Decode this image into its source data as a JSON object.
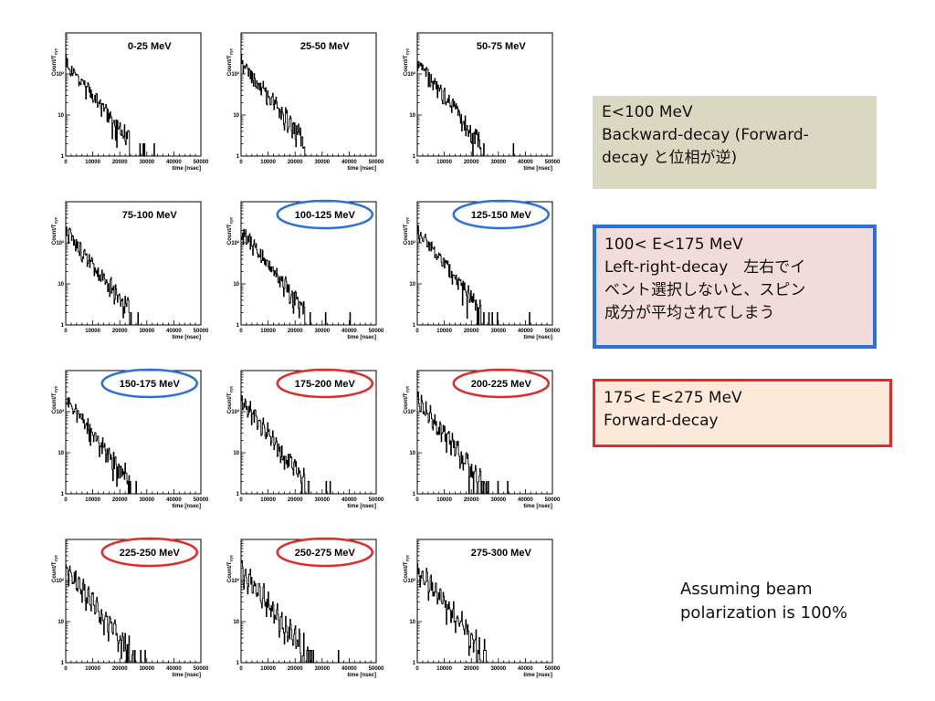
{
  "chart_data": [
    {
      "type": "line",
      "title": "0-25 MeV",
      "ylabel": "Count/T_cyc",
      "xlabel": "time [nsec]",
      "ylog": true,
      "decay": 0.00019,
      "oscillation": 0.08,
      "xlim": [
        0,
        50000
      ],
      "ylim": [
        1,
        1000
      ],
      "x_ticks": [
        "0",
        "10000",
        "20000",
        "30000",
        "40000",
        "50000"
      ],
      "y_ticks": [
        "1",
        "10",
        "10²"
      ],
      "highlight": null
    },
    {
      "type": "line",
      "title": "25-50 MeV",
      "ylabel": "Count/T_cyc",
      "xlabel": "time [nsec]",
      "ylog": true,
      "decay": 0.00019,
      "oscillation": 0.08,
      "xlim": [
        0,
        50000
      ],
      "ylim": [
        1,
        1000
      ],
      "x_ticks": [
        "0",
        "10000",
        "20000",
        "30000",
        "40000",
        "50000"
      ],
      "y_ticks": [
        "1",
        "10",
        "10²"
      ],
      "highlight": null
    },
    {
      "type": "line",
      "title": "50-75 MeV",
      "ylabel": "Count/T_cyc",
      "xlabel": "time [nsec]",
      "ylog": true,
      "decay": 0.00022,
      "oscillation": 0.08,
      "xlim": [
        0,
        50000
      ],
      "ylim": [
        1,
        1000
      ],
      "x_ticks": [
        "0",
        "10000",
        "20000",
        "30000",
        "40000",
        "50000"
      ],
      "y_ticks": [
        "1",
        "10",
        "10²"
      ],
      "highlight": null
    },
    {
      "type": "line",
      "title": "75-100 MeV",
      "ylabel": "Count/T_cyc",
      "xlabel": "time [nsec]",
      "ylog": true,
      "decay": 0.00019,
      "oscillation": 0.1,
      "xlim": [
        0,
        50000
      ],
      "ylim": [
        1,
        1000
      ],
      "x_ticks": [
        "0",
        "10000",
        "20000",
        "30000",
        "40000",
        "50000"
      ],
      "y_ticks": [
        "1",
        "10",
        "10²"
      ],
      "highlight": null
    },
    {
      "type": "line",
      "title": "100-125 MeV",
      "ylabel": "Count/T_cyc",
      "xlabel": "time [nsec]",
      "ylog": true,
      "decay": 0.00023,
      "oscillation": 0.06,
      "xlim": [
        0,
        50000
      ],
      "ylim": [
        1,
        1000
      ],
      "x_ticks": [
        "0",
        "10000",
        "20000",
        "30000",
        "40000",
        "50000"
      ],
      "y_ticks": [
        "1",
        "10",
        "10²"
      ],
      "highlight": "blue"
    },
    {
      "type": "line",
      "title": "125-150 MeV",
      "ylabel": "Count/T_cyc",
      "xlabel": "time [nsec]",
      "ylog": true,
      "decay": 0.00023,
      "oscillation": 0.06,
      "xlim": [
        0,
        50000
      ],
      "ylim": [
        1,
        1000
      ],
      "x_ticks": [
        "0",
        "10000",
        "20000",
        "30000",
        "40000",
        "50000"
      ],
      "y_ticks": [
        "1",
        "10",
        "10²"
      ],
      "highlight": "blue"
    },
    {
      "type": "line",
      "title": "150-175 MeV",
      "ylabel": "Count/T_cyc",
      "xlabel": "time [nsec]",
      "ylog": true,
      "decay": 0.00023,
      "oscillation": 0.1,
      "xlim": [
        0,
        50000
      ],
      "ylim": [
        1,
        1000
      ],
      "x_ticks": [
        "0",
        "10000",
        "20000",
        "30000",
        "40000",
        "50000"
      ],
      "y_ticks": [
        "1",
        "10",
        "10²"
      ],
      "highlight": "blue"
    },
    {
      "type": "line",
      "title": "175-200 MeV",
      "ylabel": "Count/T_cyc",
      "xlabel": "time [nsec]",
      "ylog": true,
      "decay": 0.00023,
      "oscillation": 0.22,
      "xlim": [
        0,
        50000
      ],
      "ylim": [
        1,
        1000
      ],
      "x_ticks": [
        "0",
        "10000",
        "20000",
        "30000",
        "40000",
        "50000"
      ],
      "y_ticks": [
        "1",
        "10",
        "10²"
      ],
      "highlight": "red"
    },
    {
      "type": "line",
      "title": "200-225 MeV",
      "ylabel": "Count/T_cyc",
      "xlabel": "time [nsec]",
      "ylog": true,
      "decay": 0.00022,
      "oscillation": 0.32,
      "xlim": [
        0,
        50000
      ],
      "ylim": [
        1,
        1000
      ],
      "x_ticks": [
        "0",
        "10000",
        "20000",
        "30000",
        "40000",
        "50000"
      ],
      "y_ticks": [
        "1",
        "10",
        "10²"
      ],
      "highlight": "red"
    },
    {
      "type": "line",
      "title": "225-250 MeV",
      "ylabel": "Count/T_cyc",
      "xlabel": "time [nsec]",
      "ylog": true,
      "decay": 0.00021,
      "oscillation": 0.4,
      "xlim": [
        0,
        50000
      ],
      "ylim": [
        1,
        1000
      ],
      "x_ticks": [
        "0",
        "10000",
        "20000",
        "30000",
        "40000",
        "50000"
      ],
      "y_ticks": [
        "1",
        "10",
        "10²"
      ],
      "highlight": "red"
    },
    {
      "type": "line",
      "title": "250-275 MeV",
      "ylabel": "Count/T_cyc",
      "xlabel": "time [nsec]",
      "ylog": true,
      "decay": 0.00021,
      "oscillation": 0.42,
      "xlim": [
        0,
        50000
      ],
      "ylim": [
        1,
        1000
      ],
      "x_ticks": [
        "0",
        "10000",
        "20000",
        "30000",
        "40000",
        "50000"
      ],
      "y_ticks": [
        "1",
        "10",
        "10²"
      ],
      "highlight": "red"
    },
    {
      "type": "line",
      "title": "275-300 MeV",
      "ylabel": "Count/T_cyc",
      "xlabel": "time [nsec]",
      "ylog": true,
      "decay": 0.00026,
      "oscillation": 0.35,
      "xlim": [
        0,
        50000
      ],
      "ylim": [
        1,
        1000
      ],
      "x_ticks": [
        "0",
        "10000",
        "20000",
        "30000",
        "40000",
        "50000"
      ],
      "y_ticks": [
        "1",
        "10",
        "10²"
      ],
      "highlight": null
    }
  ],
  "colors": {
    "blue_ring": "#2a72d9",
    "red_ring": "#e02b2b",
    "box1_bg": "#dbd8c1",
    "box2_bg": "#f2dcdb",
    "box2_border": "#2a72d9",
    "box3_bg": "#fde9d9",
    "box3_border": "#e02b2b"
  },
  "notes": {
    "box1": {
      "line1": "E<100 MeV",
      "line2": "Backward-decay (Forward-",
      "line3": "decay と位相が逆)"
    },
    "box2": {
      "line1": "100< E<175 MeV",
      "line2": "Left-right-decay　左右でイ",
      "line3": "ベント選択しないと、スピン",
      "line4": "成分が平均されてしまう"
    },
    "box3": {
      "line1": "175< E<275 MeV",
      "line2": "Forward-decay"
    },
    "footnote": {
      "line1": "Assuming beam",
      "line2": "polarization is 100%"
    }
  }
}
